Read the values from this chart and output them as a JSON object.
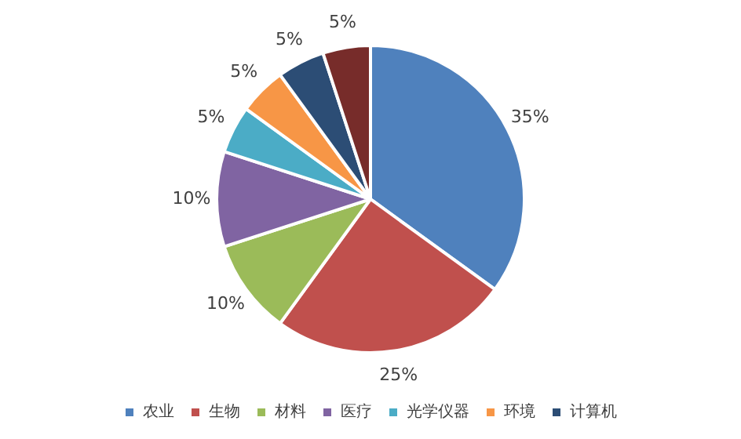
{
  "chart_data": {
    "type": "pie",
    "categories": [
      "农业",
      "生物",
      "材料",
      "医疗",
      "光学仪器",
      "环境",
      "计算机",
      null
    ],
    "values": [
      35,
      25,
      10,
      10,
      5,
      5,
      5,
      5
    ],
    "value_labels": [
      "35%",
      "25%",
      "10%",
      "10%",
      "5%",
      "5%",
      "5%",
      "5%"
    ],
    "colors": [
      "#4f81bd",
      "#c0504d",
      "#9bbb59",
      "#8064a2",
      "#4bacc6",
      "#f79646",
      "#2c4d75",
      "#772c2a"
    ],
    "legend": "bottom"
  }
}
